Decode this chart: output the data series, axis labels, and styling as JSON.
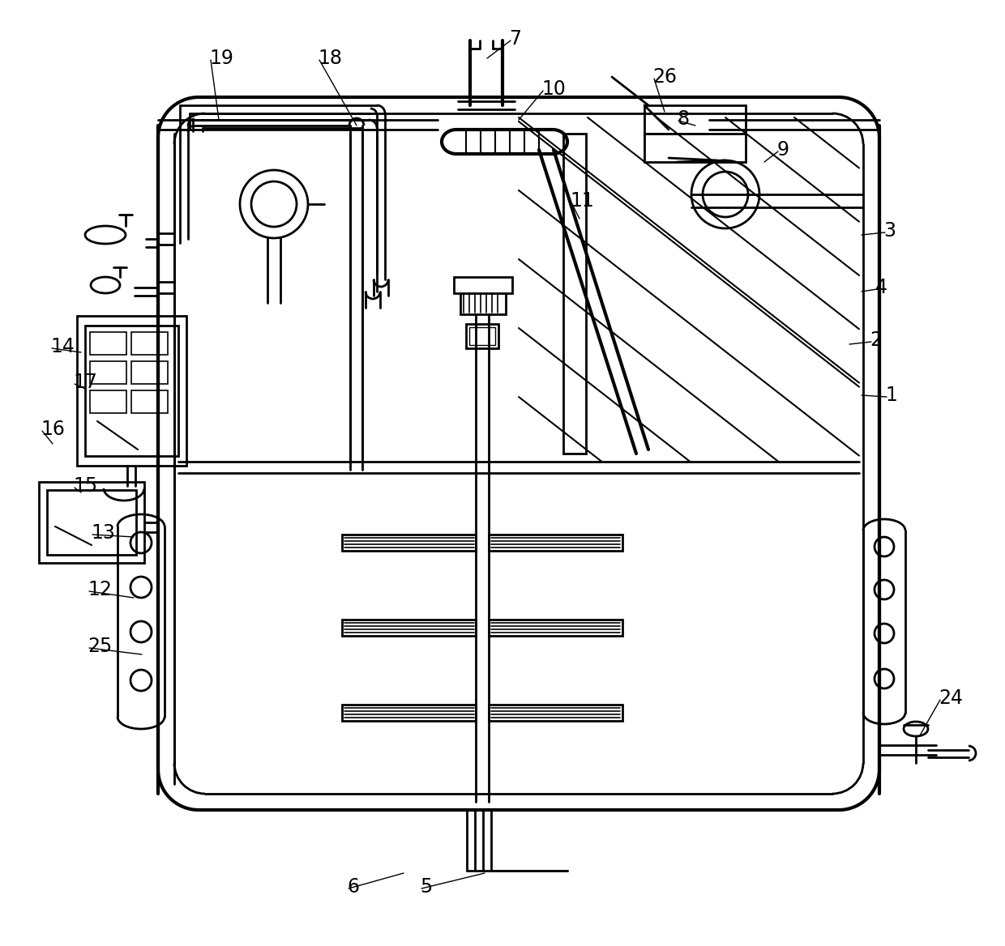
{
  "bg_color": "#ffffff",
  "line_color": "#000000",
  "lw": 2.0,
  "tlw": 3.0,
  "figsize": [
    12.4,
    11.68
  ],
  "dpi": 100
}
